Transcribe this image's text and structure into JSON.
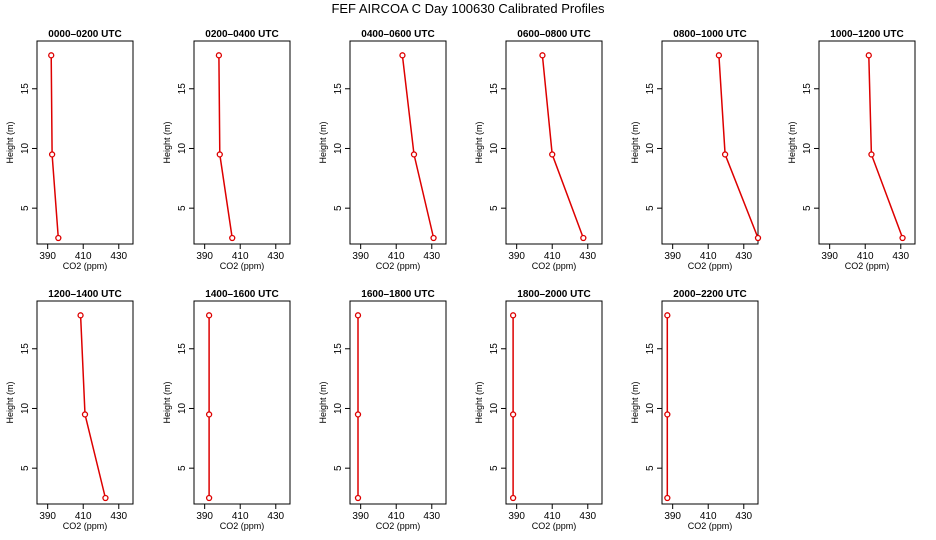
{
  "figure": {
    "title": "FEF AIRCOA C  Day 100630  Calibrated Profiles"
  },
  "chart_data": [
    {
      "type": "line",
      "title": "0000–0200 UTC",
      "xlabel": "CO2 (ppm)",
      "ylabel": "Height (m)",
      "xlim": [
        384,
        438
      ],
      "ylim": [
        2,
        19
      ],
      "xticks": [
        390,
        410,
        430
      ],
      "yticks": [
        5,
        10,
        15
      ],
      "series": [
        {
          "x": [
            392.0,
            392.5,
            396.0
          ],
          "y": [
            17.8,
            9.5,
            2.5
          ]
        }
      ]
    },
    {
      "type": "line",
      "title": "0200–0400 UTC",
      "xlabel": "CO2 (ppm)",
      "ylabel": "Height (m)",
      "xlim": [
        384,
        438
      ],
      "ylim": [
        2,
        19
      ],
      "xticks": [
        390,
        410,
        430
      ],
      "yticks": [
        5,
        10,
        15
      ],
      "series": [
        {
          "x": [
            398.0,
            398.5,
            405.5
          ],
          "y": [
            17.8,
            9.5,
            2.5
          ]
        }
      ]
    },
    {
      "type": "line",
      "title": "0400–0600 UTC",
      "xlabel": "CO2 (ppm)",
      "ylabel": "Height (m)",
      "xlim": [
        384,
        438
      ],
      "ylim": [
        2,
        19
      ],
      "xticks": [
        390,
        410,
        430
      ],
      "yticks": [
        5,
        10,
        15
      ],
      "series": [
        {
          "x": [
            413.5,
            420.0,
            431.0
          ],
          "y": [
            17.8,
            9.5,
            2.5
          ]
        }
      ]
    },
    {
      "type": "line",
      "title": "0600–0800 UTC",
      "xlabel": "CO2 (ppm)",
      "ylabel": "Height (m)",
      "xlim": [
        384,
        438
      ],
      "ylim": [
        2,
        19
      ],
      "xticks": [
        390,
        410,
        430
      ],
      "yticks": [
        5,
        10,
        15
      ],
      "series": [
        {
          "x": [
            404.5,
            410.0,
            427.5
          ],
          "y": [
            17.8,
            9.5,
            2.5
          ]
        }
      ]
    },
    {
      "type": "line",
      "title": "0800–1000 UTC",
      "xlabel": "CO2 (ppm)",
      "ylabel": "Height (m)",
      "xlim": [
        384,
        438
      ],
      "ylim": [
        2,
        19
      ],
      "xticks": [
        390,
        410,
        430
      ],
      "yticks": [
        5,
        10,
        15
      ],
      "series": [
        {
          "x": [
            416.0,
            419.5,
            438.0
          ],
          "y": [
            17.8,
            9.5,
            2.5
          ]
        }
      ]
    },
    {
      "type": "line",
      "title": "1000–1200 UTC",
      "xlabel": "CO2 (ppm)",
      "ylabel": "Height (m)",
      "xlim": [
        384,
        438
      ],
      "ylim": [
        2,
        19
      ],
      "xticks": [
        390,
        410,
        430
      ],
      "yticks": [
        5,
        10,
        15
      ],
      "series": [
        {
          "x": [
            412.0,
            413.5,
            431.0
          ],
          "y": [
            17.8,
            9.5,
            2.5
          ]
        }
      ]
    },
    {
      "type": "line",
      "title": "1200–1400 UTC",
      "xlabel": "CO2 (ppm)",
      "ylabel": "Height (m)",
      "xlim": [
        384,
        438
      ],
      "ylim": [
        2,
        19
      ],
      "xticks": [
        390,
        410,
        430
      ],
      "yticks": [
        5,
        10,
        15
      ],
      "series": [
        {
          "x": [
            408.5,
            411.0,
            422.5
          ],
          "y": [
            17.8,
            9.5,
            2.5
          ]
        }
      ]
    },
    {
      "type": "line",
      "title": "1400–1600 UTC",
      "xlabel": "CO2 (ppm)",
      "ylabel": "Height (m)",
      "xlim": [
        384,
        438
      ],
      "ylim": [
        2,
        19
      ],
      "xticks": [
        390,
        410,
        430
      ],
      "yticks": [
        5,
        10,
        15
      ],
      "series": [
        {
          "x": [
            392.5,
            392.5,
            392.5
          ],
          "y": [
            17.8,
            9.5,
            2.5
          ]
        }
      ]
    },
    {
      "type": "line",
      "title": "1600–1800 UTC",
      "xlabel": "CO2 (ppm)",
      "ylabel": "Height (m)",
      "xlim": [
        384,
        438
      ],
      "ylim": [
        2,
        19
      ],
      "xticks": [
        390,
        410,
        430
      ],
      "yticks": [
        5,
        10,
        15
      ],
      "series": [
        {
          "x": [
            388.5,
            388.5,
            388.5
          ],
          "y": [
            17.8,
            9.5,
            2.5
          ]
        }
      ]
    },
    {
      "type": "line",
      "title": "1800–2000 UTC",
      "xlabel": "CO2 (ppm)",
      "ylabel": "Height (m)",
      "xlim": [
        384,
        438
      ],
      "ylim": [
        2,
        19
      ],
      "xticks": [
        390,
        410,
        430
      ],
      "yticks": [
        5,
        10,
        15
      ],
      "series": [
        {
          "x": [
            388.0,
            388.0,
            388.0
          ],
          "y": [
            17.8,
            9.5,
            2.5
          ]
        }
      ]
    },
    {
      "type": "line",
      "title": "2000–2200 UTC",
      "xlabel": "CO2 (ppm)",
      "ylabel": "Height (m)",
      "xlim": [
        384,
        438
      ],
      "ylim": [
        2,
        19
      ],
      "xticks": [
        390,
        410,
        430
      ],
      "yticks": [
        5,
        10,
        15
      ],
      "series": [
        {
          "x": [
            387.0,
            387.0,
            387.0
          ],
          "y": [
            17.8,
            9.5,
            2.5
          ]
        }
      ]
    }
  ],
  "colors": {
    "series": "#dd0000",
    "axis": "#000000"
  }
}
